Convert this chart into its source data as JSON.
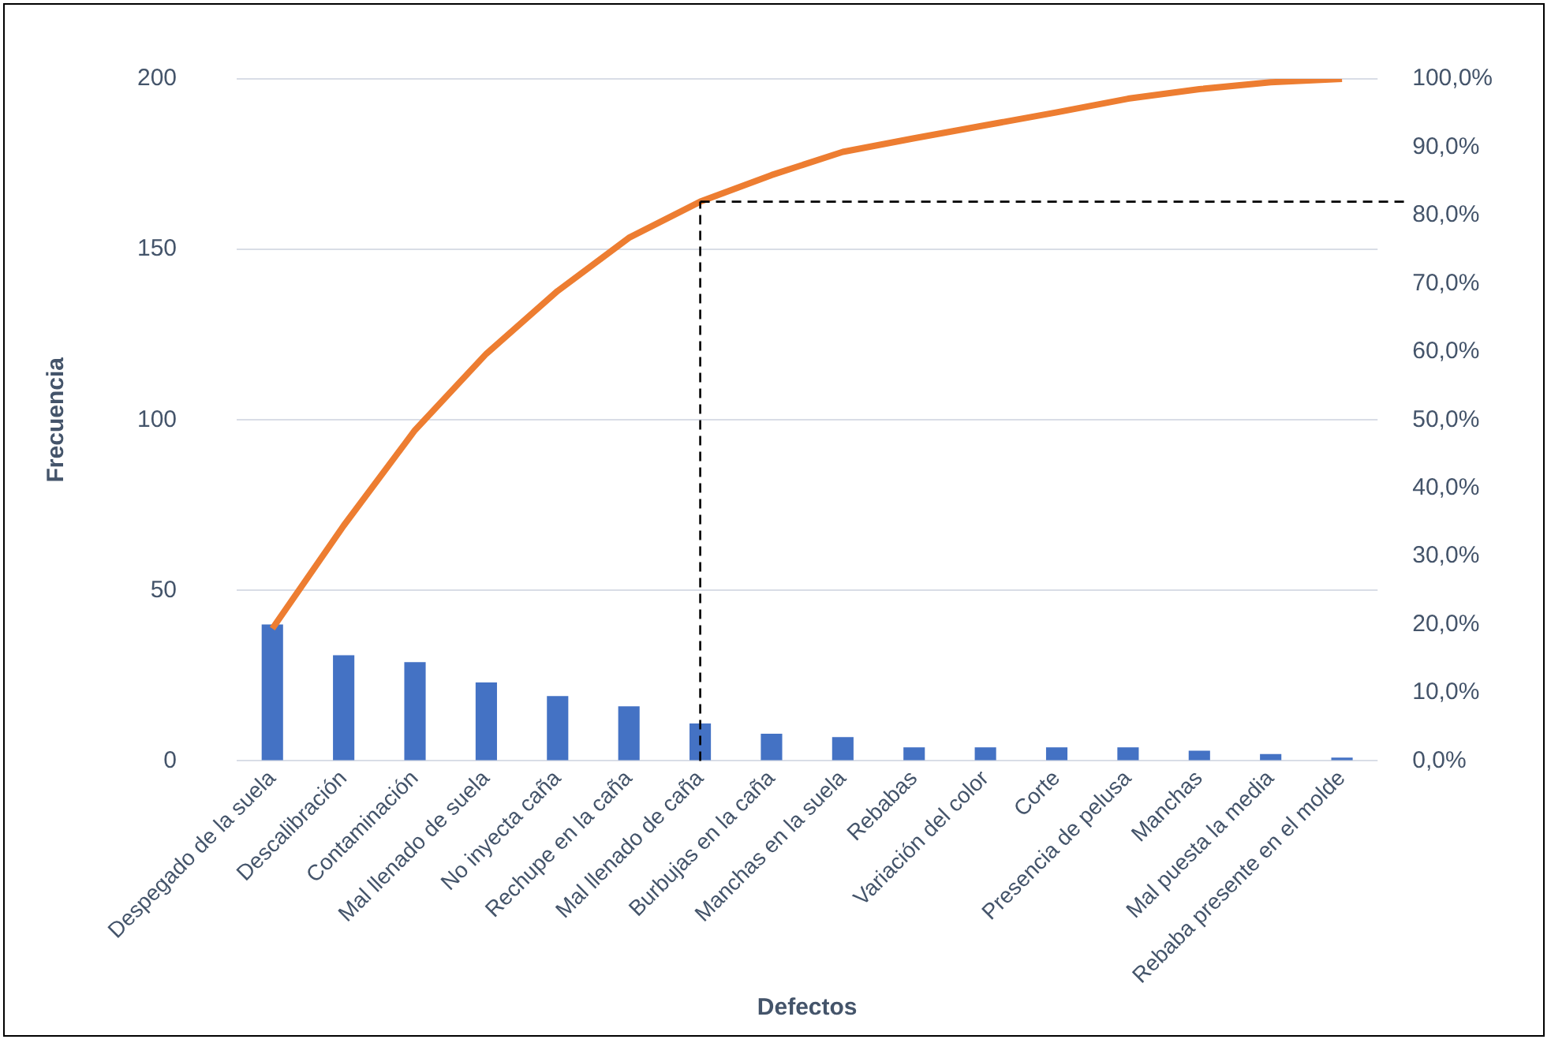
{
  "chart_data": {
    "type": "bar",
    "xlabel": "Defectos",
    "ylabel": "Frecuencia",
    "categories": [
      "Despegado de la suela",
      "Descalibración",
      "Contaminación",
      "Mal llenado de suela",
      "No inyecta caña",
      "Rechupe en la caña",
      "Mal llenado de caña",
      "Burbujas en la caña",
      "Manchas en la suela",
      "Rebabas",
      "Variación del color",
      "Corte",
      "Presencia de pelusa",
      "Manchas",
      "Mal puesta la media",
      "Rebaba presente en el molde"
    ],
    "series": [
      {
        "color": "#4472c4",
        "values": [
          40,
          31,
          29,
          23,
          19,
          16,
          11,
          8,
          7,
          4,
          4,
          4,
          4,
          3,
          2,
          1
        ]
      },
      {
        "type": "line",
        "axis": "y2",
        "color": "#ed7d31",
        "values": [
          19.4,
          34.5,
          48.5,
          59.7,
          68.9,
          76.7,
          82.0,
          85.9,
          89.3,
          91.3,
          93.2,
          95.1,
          97.1,
          98.5,
          99.5,
          100
        ]
      }
    ],
    "ylim": [
      0,
      200
    ],
    "yticks": [
      0,
      50,
      100,
      150,
      200
    ],
    "y2lim": [
      0,
      100
    ],
    "y2ticks": [
      {
        "value": 0,
        "label": "0,0%"
      },
      {
        "value": 10,
        "label": "10,0%"
      },
      {
        "value": 20,
        "label": "20,0%"
      },
      {
        "value": 30,
        "label": "30,0%"
      },
      {
        "value": 40,
        "label": "40,0%"
      },
      {
        "value": 50,
        "label": "50,0%"
      },
      {
        "value": 60,
        "label": "60,0%"
      },
      {
        "value": 70,
        "label": "70,0%"
      },
      {
        "value": 80,
        "label": "80,0%"
      },
      {
        "value": 90,
        "label": "90,0%"
      },
      {
        "value": 100,
        "label": "100,0%"
      }
    ],
    "ref_lines": [
      {
        "axis": "x",
        "value": "Mal llenado de caña",
        "color": "#000000",
        "line_style": "dashed"
      },
      {
        "axis": "y2",
        "value": 82,
        "color": "#000000",
        "line_style": "dashed"
      }
    ],
    "grid": "y",
    "legend": false,
    "marker": "none",
    "line_style": "solid"
  }
}
